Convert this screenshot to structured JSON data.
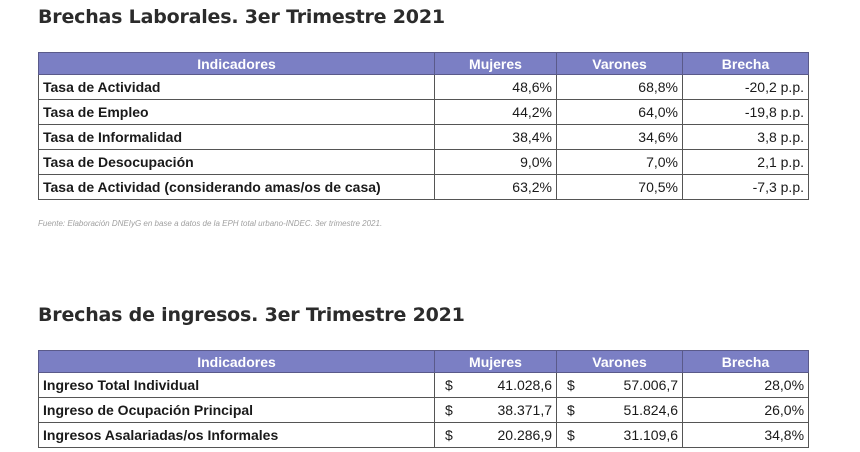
{
  "table1": {
    "title": "Brechas Laborales. 3er Trimestre 2021",
    "headers": [
      "Indicadores",
      "Mujeres",
      "Varones",
      "Brecha"
    ],
    "rows": [
      {
        "indicador": "Tasa de Actividad",
        "mujeres": "48,6%",
        "varones": "68,8%",
        "brecha": "-20,2 p.p."
      },
      {
        "indicador": "Tasa de Empleo",
        "mujeres": "44,2%",
        "varones": "64,0%",
        "brecha": "-19,8 p.p."
      },
      {
        "indicador": "Tasa de Informalidad",
        "mujeres": "38,4%",
        "varones": "34,6%",
        "brecha": "3,8 p.p."
      },
      {
        "indicador": "Tasa de Desocupación",
        "mujeres": "9,0%",
        "varones": "7,0%",
        "brecha": "2,1 p.p."
      },
      {
        "indicador": "Tasa de Actividad (considerando amas/os de casa)",
        "mujeres": "63,2%",
        "varones": "70,5%",
        "brecha": "-7,3 p.p."
      }
    ],
    "source": "Fuente: Elaboración DNEIyG en base a datos de la EPH total urbano-INDEC. 3er trimestre 2021."
  },
  "table2": {
    "title": "Brechas de ingresos. 3er Trimestre 2021",
    "headers": [
      "Indicadores",
      "Mujeres",
      "Varones",
      "Brecha"
    ],
    "currency": "$",
    "rows": [
      {
        "indicador": "Ingreso Total Individual",
        "mujeres": "41.028,6",
        "varones": "57.006,7",
        "brecha": "28,0%"
      },
      {
        "indicador": "Ingreso de Ocupación Principal",
        "mujeres": "38.371,7",
        "varones": "51.824,6",
        "brecha": "26,0%"
      },
      {
        "indicador": "Ingresos Asalariadas/os Informales",
        "mujeres": "20.286,9",
        "varones": "31.109,6",
        "brecha": "34,8%"
      }
    ]
  },
  "colors": {
    "header_bg": "#7b7fc4",
    "header_text": "#ffffff"
  }
}
